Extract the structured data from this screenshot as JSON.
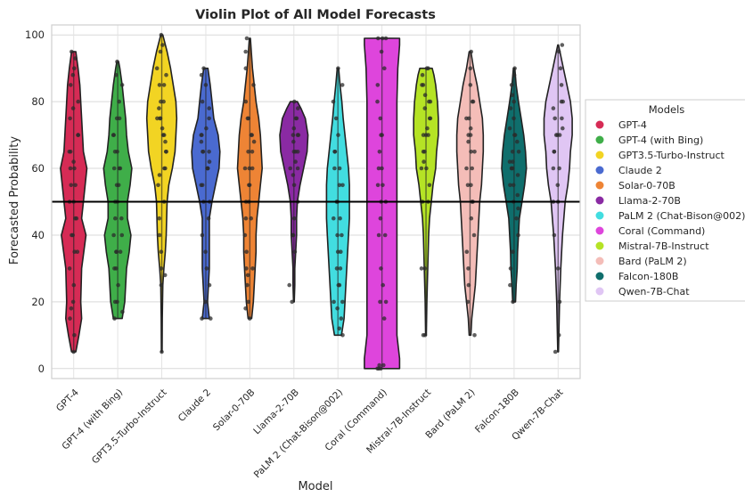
{
  "chart_data": {
    "type": "violin",
    "title": "Violin Plot of All Model Forecasts",
    "xlabel": "Model",
    "ylabel": "Forecasted Probability",
    "ylim": [
      -3,
      103
    ],
    "yticks": [
      0,
      20,
      40,
      60,
      80,
      100
    ],
    "reference_line_y": 50,
    "grid": true,
    "legend": {
      "title": "Models",
      "placement": "right, outside plot"
    },
    "categories": [
      "GPT-4",
      "GPT-4 (with Bing)",
      "GPT3.5-Turbo-Instruct",
      "Claude 2",
      "Solar-0-70B",
      "Llama-2-70B",
      "PaLM 2 (Chat-Bison@002)",
      "Coral (Command)",
      "Mistral-7B-Instruct",
      "Bard (PaLM 2)",
      "Falcon-180B",
      "Qwen-7B-Chat"
    ],
    "series": [
      {
        "name": "GPT-4",
        "color": "#d62b55",
        "range": [
          5,
          95
        ],
        "median": 50,
        "density": [
          [
            5,
            0.12
          ],
          [
            10,
            0.3
          ],
          [
            15,
            0.45
          ],
          [
            20,
            0.4
          ],
          [
            30,
            0.45
          ],
          [
            40,
            0.7
          ],
          [
            45,
            0.45
          ],
          [
            50,
            0.55
          ],
          [
            60,
            0.75
          ],
          [
            65,
            0.55
          ],
          [
            75,
            0.45
          ],
          [
            85,
            0.35
          ],
          [
            90,
            0.25
          ],
          [
            95,
            0.12
          ]
        ],
        "points": [
          5,
          10,
          15,
          18,
          20,
          25,
          30,
          35,
          35,
          40,
          40,
          45,
          45,
          50,
          50,
          55,
          55,
          60,
          60,
          62,
          65,
          65,
          70,
          70,
          75,
          78,
          80,
          85,
          88,
          90,
          93,
          95
        ]
      },
      {
        "name": "GPT-4 (with Bing)",
        "color": "#3fae49",
        "range": [
          15,
          92
        ],
        "median": 50,
        "density": [
          [
            15,
            0.25
          ],
          [
            20,
            0.4
          ],
          [
            25,
            0.45
          ],
          [
            30,
            0.5
          ],
          [
            35,
            0.65
          ],
          [
            40,
            0.75
          ],
          [
            45,
            0.55
          ],
          [
            50,
            0.55
          ],
          [
            55,
            0.7
          ],
          [
            60,
            0.8
          ],
          [
            65,
            0.6
          ],
          [
            70,
            0.5
          ],
          [
            75,
            0.45
          ],
          [
            80,
            0.35
          ],
          [
            85,
            0.25
          ],
          [
            90,
            0.12
          ],
          [
            92,
            0.05
          ]
        ],
        "points": [
          15,
          17,
          20,
          20,
          25,
          30,
          30,
          35,
          35,
          35,
          40,
          40,
          45,
          45,
          50,
          50,
          55,
          55,
          60,
          60,
          60,
          65,
          65,
          70,
          70,
          75,
          75,
          80,
          85,
          88,
          92
        ]
      },
      {
        "name": "GPT3.5-Turbo-Instruct",
        "color": "#f2d423",
        "range": [
          5,
          100
        ],
        "median": 65,
        "density": [
          [
            5,
            0.02
          ],
          [
            15,
            0.03
          ],
          [
            25,
            0.06
          ],
          [
            30,
            0.12
          ],
          [
            35,
            0.2
          ],
          [
            40,
            0.25
          ],
          [
            50,
            0.3
          ],
          [
            55,
            0.4
          ],
          [
            60,
            0.6
          ],
          [
            65,
            0.75
          ],
          [
            70,
            0.8
          ],
          [
            75,
            0.85
          ],
          [
            80,
            0.8
          ],
          [
            85,
            0.65
          ],
          [
            90,
            0.5
          ],
          [
            95,
            0.3
          ],
          [
            100,
            0.06
          ]
        ],
        "points": [
          5,
          25,
          28,
          30,
          35,
          40,
          45,
          50,
          55,
          58,
          60,
          60,
          65,
          65,
          68,
          70,
          70,
          72,
          75,
          75,
          75,
          78,
          80,
          80,
          85,
          85,
          88,
          90,
          95,
          97,
          100
        ]
      },
      {
        "name": "Claude 2",
        "color": "#4a6ad0",
        "range": [
          15,
          90
        ],
        "median": 60,
        "density": [
          [
            15,
            0.2
          ],
          [
            20,
            0.1
          ],
          [
            25,
            0.15
          ],
          [
            30,
            0.2
          ],
          [
            40,
            0.2
          ],
          [
            45,
            0.2
          ],
          [
            50,
            0.35
          ],
          [
            55,
            0.55
          ],
          [
            60,
            0.75
          ],
          [
            65,
            0.8
          ],
          [
            70,
            0.7
          ],
          [
            75,
            0.45
          ],
          [
            80,
            0.35
          ],
          [
            85,
            0.25
          ],
          [
            90,
            0.12
          ]
        ],
        "points": [
          15,
          15,
          20,
          25,
          30,
          35,
          40,
          45,
          50,
          50,
          55,
          55,
          60,
          60,
          60,
          62,
          65,
          65,
          65,
          68,
          70,
          70,
          72,
          75,
          78,
          80,
          85,
          88,
          90
        ]
      },
      {
        "name": "Solar-0-70B",
        "color": "#ee8435",
        "range": [
          15,
          99
        ],
        "median": 60,
        "density": [
          [
            15,
            0.1
          ],
          [
            20,
            0.2
          ],
          [
            25,
            0.25
          ],
          [
            30,
            0.3
          ],
          [
            35,
            0.35
          ],
          [
            40,
            0.35
          ],
          [
            45,
            0.4
          ],
          [
            50,
            0.5
          ],
          [
            55,
            0.6
          ],
          [
            60,
            0.7
          ],
          [
            65,
            0.65
          ],
          [
            70,
            0.6
          ],
          [
            75,
            0.5
          ],
          [
            80,
            0.35
          ],
          [
            85,
            0.25
          ],
          [
            90,
            0.15
          ],
          [
            95,
            0.08
          ],
          [
            99,
            0.03
          ]
        ],
        "points": [
          15,
          18,
          20,
          25,
          28,
          30,
          30,
          35,
          40,
          45,
          45,
          50,
          50,
          55,
          55,
          60,
          60,
          60,
          65,
          65,
          68,
          70,
          70,
          75,
          75,
          80,
          85,
          90,
          95,
          99
        ]
      },
      {
        "name": "Llama-2-70B",
        "color": "#8a2aa3",
        "range": [
          20,
          80
        ],
        "median": 65,
        "density": [
          [
            20,
            0.02
          ],
          [
            25,
            0.05
          ],
          [
            30,
            0.05
          ],
          [
            35,
            0.1
          ],
          [
            40,
            0.15
          ],
          [
            45,
            0.15
          ],
          [
            50,
            0.2
          ],
          [
            55,
            0.35
          ],
          [
            60,
            0.55
          ],
          [
            65,
            0.75
          ],
          [
            70,
            0.8
          ],
          [
            75,
            0.65
          ],
          [
            78,
            0.4
          ],
          [
            80,
            0.2
          ]
        ],
        "points": [
          20,
          25,
          35,
          40,
          40,
          45,
          50,
          55,
          58,
          60,
          60,
          62,
          65,
          65,
          65,
          68,
          70,
          70,
          70,
          72,
          75,
          75,
          78,
          80
        ]
      },
      {
        "name": "PaLM 2 (Chat-Bison@002)",
        "color": "#42dde0",
        "range": [
          10,
          90
        ],
        "median": 50,
        "density": [
          [
            10,
            0.2
          ],
          [
            15,
            0.35
          ],
          [
            20,
            0.4
          ],
          [
            25,
            0.45
          ],
          [
            30,
            0.5
          ],
          [
            35,
            0.55
          ],
          [
            40,
            0.6
          ],
          [
            45,
            0.65
          ],
          [
            50,
            0.65
          ],
          [
            55,
            0.65
          ],
          [
            60,
            0.6
          ],
          [
            65,
            0.5
          ],
          [
            70,
            0.4
          ],
          [
            75,
            0.3
          ],
          [
            80,
            0.22
          ],
          [
            85,
            0.12
          ],
          [
            90,
            0.04
          ]
        ],
        "points": [
          10,
          12,
          15,
          18,
          20,
          20,
          25,
          25,
          30,
          30,
          35,
          35,
          40,
          40,
          45,
          45,
          50,
          50,
          55,
          55,
          60,
          60,
          65,
          65,
          70,
          75,
          80,
          85,
          90
        ]
      },
      {
        "name": "Coral (Command)",
        "color": "#de45dc",
        "range": [
          0,
          99
        ],
        "median": 50,
        "density": [
          [
            0,
            1.0
          ],
          [
            3,
            1.0
          ],
          [
            10,
            0.85
          ],
          [
            20,
            0.85
          ],
          [
            30,
            0.85
          ],
          [
            40,
            0.85
          ],
          [
            50,
            0.85
          ],
          [
            60,
            0.85
          ],
          [
            70,
            0.85
          ],
          [
            80,
            0.85
          ],
          [
            90,
            0.9
          ],
          [
            97,
            1.0
          ],
          [
            99,
            1.0
          ]
        ],
        "points": [
          0,
          0,
          0,
          1,
          1,
          15,
          20,
          20,
          25,
          30,
          40,
          40,
          45,
          50,
          50,
          55,
          55,
          60,
          60,
          65,
          70,
          70,
          75,
          80,
          85,
          90,
          95,
          99,
          99,
          99
        ]
      },
      {
        "name": "Mistral-7B-Instruct",
        "color": "#b5e325",
        "range": [
          10,
          90
        ],
        "median": 70,
        "density": [
          [
            10,
            0.02
          ],
          [
            20,
            0.05
          ],
          [
            30,
            0.1
          ],
          [
            40,
            0.15
          ],
          [
            45,
            0.2
          ],
          [
            50,
            0.3
          ],
          [
            55,
            0.4
          ],
          [
            60,
            0.55
          ],
          [
            65,
            0.6
          ],
          [
            70,
            0.7
          ],
          [
            75,
            0.7
          ],
          [
            80,
            0.65
          ],
          [
            85,
            0.55
          ],
          [
            88,
            0.45
          ],
          [
            90,
            0.35
          ]
        ],
        "points": [
          10,
          10,
          30,
          30,
          50,
          50,
          55,
          60,
          60,
          62,
          65,
          65,
          70,
          70,
          70,
          72,
          75,
          75,
          78,
          80,
          80,
          82,
          85,
          85,
          88,
          90,
          90
        ]
      },
      {
        "name": "Bard (PaLM 2)",
        "color": "#f4bdb8",
        "range": [
          10,
          95
        ],
        "median": 60,
        "density": [
          [
            10,
            0.05
          ],
          [
            15,
            0.1
          ],
          [
            20,
            0.2
          ],
          [
            25,
            0.3
          ],
          [
            30,
            0.35
          ],
          [
            40,
            0.45
          ],
          [
            50,
            0.55
          ],
          [
            55,
            0.65
          ],
          [
            60,
            0.7
          ],
          [
            65,
            0.75
          ],
          [
            70,
            0.75
          ],
          [
            75,
            0.7
          ],
          [
            80,
            0.55
          ],
          [
            85,
            0.4
          ],
          [
            90,
            0.2
          ],
          [
            95,
            0.05
          ]
        ],
        "points": [
          10,
          20,
          25,
          30,
          35,
          40,
          45,
          50,
          50,
          55,
          55,
          60,
          60,
          65,
          65,
          68,
          70,
          70,
          72,
          75,
          75,
          80,
          80,
          85,
          90,
          95
        ]
      },
      {
        "name": "Falcon-180B",
        "color": "#0f6e6c",
        "range": [
          20,
          90
        ],
        "median": 60,
        "density": [
          [
            20,
            0.08
          ],
          [
            25,
            0.12
          ],
          [
            30,
            0.18
          ],
          [
            35,
            0.2
          ],
          [
            40,
            0.25
          ],
          [
            45,
            0.3
          ],
          [
            50,
            0.45
          ],
          [
            55,
            0.6
          ],
          [
            60,
            0.7
          ],
          [
            65,
            0.65
          ],
          [
            70,
            0.55
          ],
          [
            75,
            0.4
          ],
          [
            80,
            0.25
          ],
          [
            85,
            0.12
          ],
          [
            90,
            0.04
          ]
        ],
        "points": [
          20,
          25,
          30,
          35,
          40,
          45,
          48,
          50,
          52,
          55,
          55,
          58,
          60,
          60,
          60,
          62,
          62,
          65,
          65,
          68,
          70,
          70,
          72,
          75,
          78,
          80,
          82,
          85,
          88,
          90
        ]
      },
      {
        "name": "Qwen-7B-Chat",
        "color": "#e0c6f4",
        "range": [
          5,
          97
        ],
        "median": 70,
        "density": [
          [
            5,
            0.02
          ],
          [
            10,
            0.04
          ],
          [
            20,
            0.08
          ],
          [
            30,
            0.15
          ],
          [
            40,
            0.25
          ],
          [
            50,
            0.4
          ],
          [
            55,
            0.55
          ],
          [
            60,
            0.65
          ],
          [
            65,
            0.7
          ],
          [
            70,
            0.8
          ],
          [
            75,
            0.8
          ],
          [
            80,
            0.7
          ],
          [
            85,
            0.5
          ],
          [
            90,
            0.3
          ],
          [
            95,
            0.1
          ],
          [
            97,
            0.02
          ]
        ],
        "points": [
          5,
          10,
          20,
          30,
          40,
          50,
          50,
          55,
          60,
          60,
          65,
          65,
          70,
          70,
          70,
          72,
          75,
          75,
          78,
          80,
          80,
          85,
          90,
          95,
          97
        ]
      }
    ]
  }
}
